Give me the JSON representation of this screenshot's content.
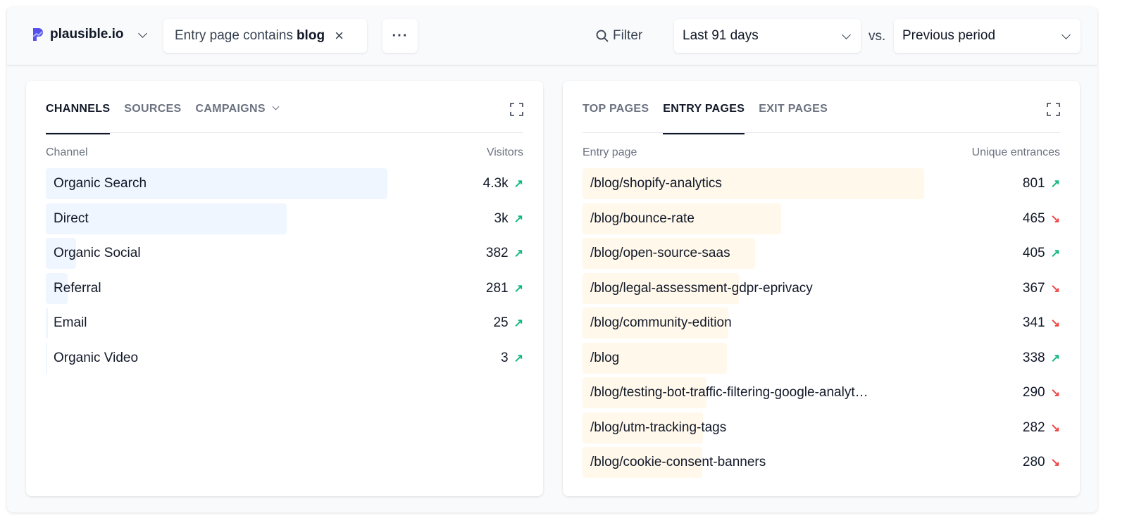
{
  "header": {
    "site": "plausible.io",
    "filter": {
      "prefix": "Entry page contains",
      "value": "blog"
    },
    "more": "···",
    "filter_label": "Filter",
    "date_range": "Last 91 days",
    "vs": "vs.",
    "comparison": "Previous period"
  },
  "colors": {
    "channel_bar": "#eff6ff",
    "page_bar": "#fff8eb",
    "up": "#10b981",
    "down": "#ef4444",
    "brand": "#5850ec"
  },
  "left": {
    "tabs": [
      "CHANNELS",
      "SOURCES",
      "CAMPAIGNS"
    ],
    "active": 0,
    "col_label": "Channel",
    "col_value": "Visitors",
    "rows": [
      {
        "label": "Organic Search",
        "value": "4.3k",
        "bar_pct": 71.6,
        "trend": "up"
      },
      {
        "label": "Direct",
        "value": "3k",
        "bar_pct": 50.5,
        "trend": "up"
      },
      {
        "label": "Organic Social",
        "value": "382",
        "bar_pct": 6.3,
        "trend": "up"
      },
      {
        "label": "Referral",
        "value": "281",
        "bar_pct": 4.6,
        "trend": "up"
      },
      {
        "label": "Email",
        "value": "25",
        "bar_pct": 0.4,
        "trend": "up"
      },
      {
        "label": "Organic Video",
        "value": "3",
        "bar_pct": 0.1,
        "trend": "up"
      }
    ]
  },
  "right": {
    "tabs": [
      "TOP PAGES",
      "ENTRY PAGES",
      "EXIT PAGES"
    ],
    "active": 1,
    "col_label": "Entry page",
    "col_value": "Unique entrances",
    "rows": [
      {
        "label": "/blog/shopify-analytics",
        "value": "801",
        "bar_pct": 71.6,
        "trend": "up"
      },
      {
        "label": "/blog/bounce-rate",
        "value": "465",
        "bar_pct": 41.6,
        "trend": "down"
      },
      {
        "label": "/blog/open-source-saas",
        "value": "405",
        "bar_pct": 36.2,
        "trend": "up"
      },
      {
        "label": "/blog/legal-assessment-gdpr-eprivacy",
        "value": "367",
        "bar_pct": 32.8,
        "trend": "down"
      },
      {
        "label": "/blog/community-edition",
        "value": "341",
        "bar_pct": 30.5,
        "trend": "down"
      },
      {
        "label": "/blog",
        "value": "338",
        "bar_pct": 30.2,
        "trend": "up"
      },
      {
        "label": "/blog/testing-bot-traffic-filtering-google-analyt…",
        "value": "290",
        "bar_pct": 25.9,
        "trend": "down"
      },
      {
        "label": "/blog/utm-tracking-tags",
        "value": "282",
        "bar_pct": 25.2,
        "trend": "down"
      },
      {
        "label": "/blog/cookie-consent-banners",
        "value": "280",
        "bar_pct": 25.0,
        "trend": "down"
      }
    ]
  }
}
